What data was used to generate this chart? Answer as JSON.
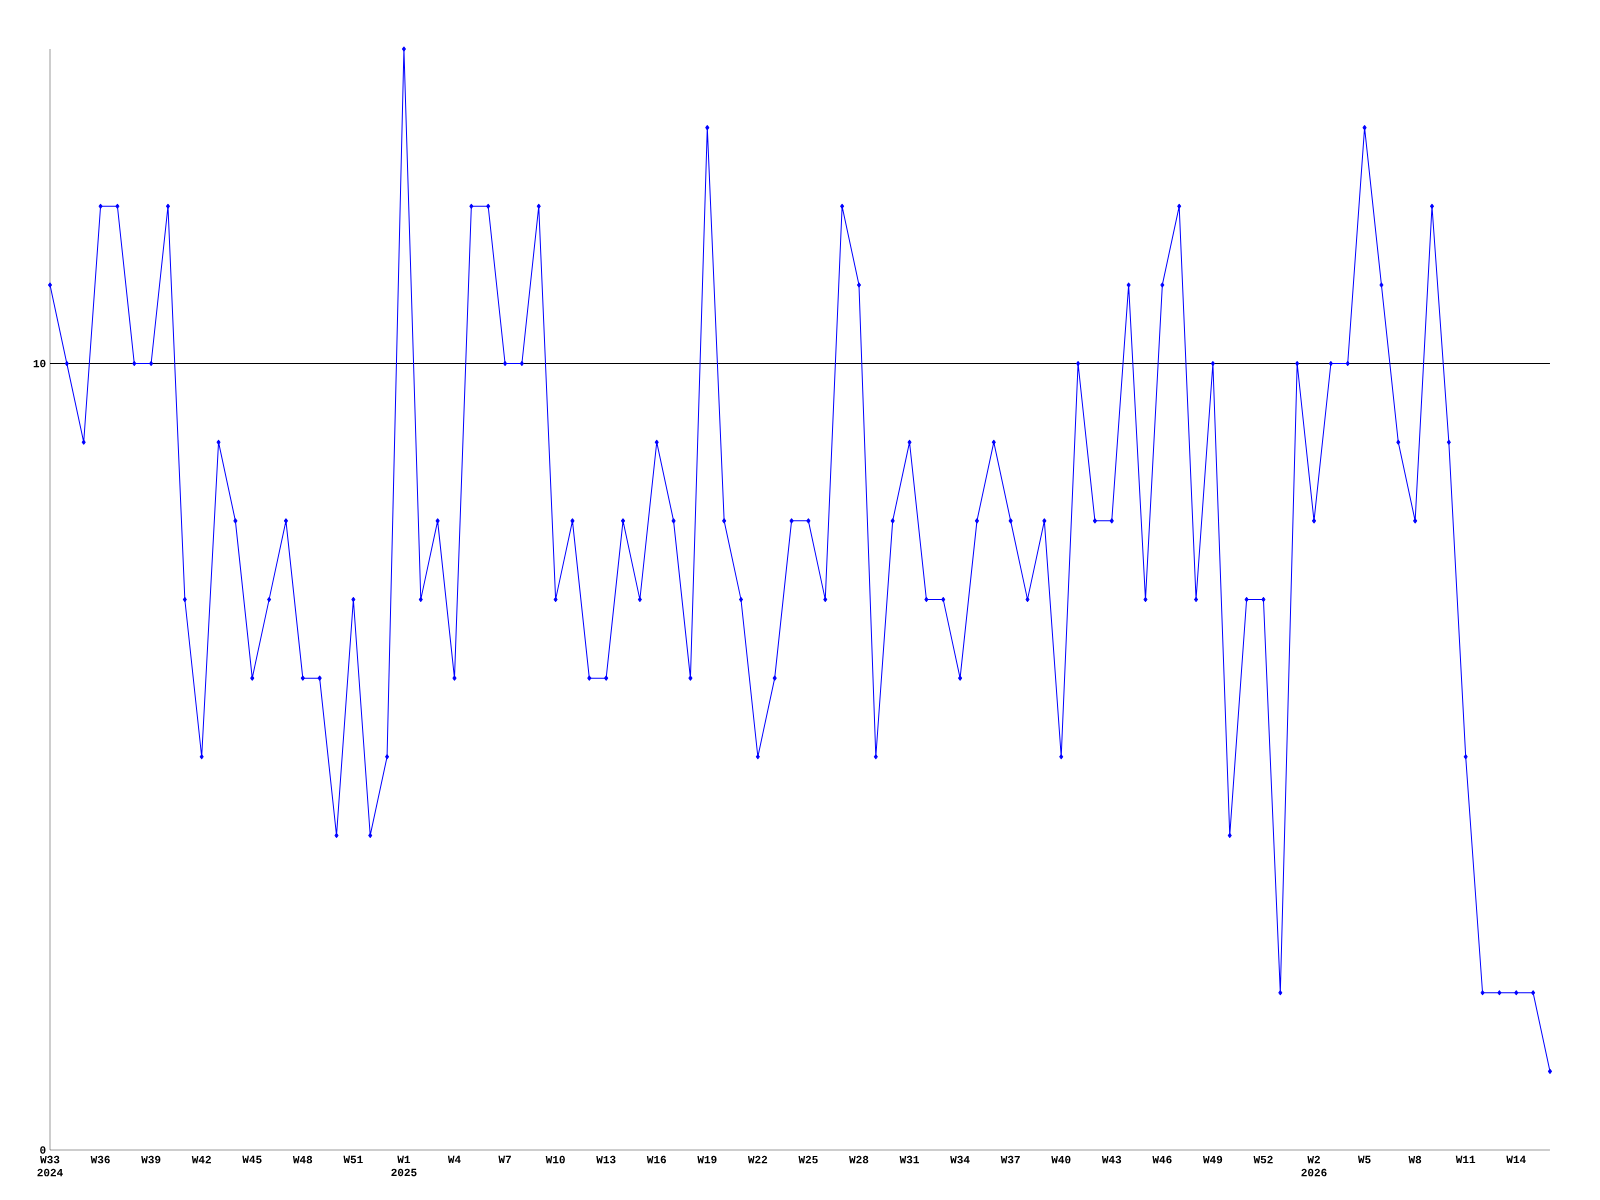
{
  "chart_data": {
    "type": "line",
    "categories": [
      "W33 2024",
      null,
      null,
      "W36",
      null,
      null,
      "W39",
      null,
      null,
      "W42",
      null,
      null,
      "W45",
      null,
      null,
      "W48",
      null,
      null,
      "W51",
      null,
      null,
      "W1 2025",
      null,
      null,
      "W4",
      null,
      null,
      "W7",
      null,
      null,
      "W10",
      null,
      null,
      "W13",
      null,
      null,
      "W16",
      null,
      null,
      "W19",
      null,
      null,
      "W22",
      null,
      null,
      "W25",
      null,
      null,
      "W28",
      null,
      null,
      "W31",
      null,
      null,
      "W34",
      null,
      null,
      "W37",
      null,
      null,
      "W40",
      null,
      null,
      "W43",
      null,
      null,
      "W46",
      null,
      null,
      "W49",
      null,
      null,
      "W52",
      null,
      null,
      "W2 2026",
      null,
      null,
      "W5",
      null,
      null,
      "W8",
      null,
      null,
      "W11",
      null,
      null,
      "W14",
      null,
      null
    ],
    "values": [
      11,
      10,
      9,
      12,
      12,
      10,
      10,
      12,
      7,
      5,
      9,
      8,
      6,
      7,
      8,
      6,
      6,
      4,
      7,
      4,
      5,
      14,
      7,
      8,
      6,
      12,
      12,
      10,
      10,
      12,
      7,
      8,
      6,
      6,
      8,
      7,
      9,
      8,
      6,
      13,
      8,
      7,
      5,
      6,
      8,
      8,
      7,
      12,
      11,
      5,
      8,
      9,
      7,
      7,
      6,
      8,
      9,
      8,
      7,
      8,
      5,
      10,
      8,
      8,
      11,
      7,
      11,
      12,
      7,
      10,
      4,
      7,
      7,
      2,
      10,
      8,
      10,
      10,
      13,
      11,
      9,
      8,
      12,
      9,
      5,
      2,
      2,
      2,
      2,
      1
    ],
    "color": "#0000ff",
    "marker": "diamond",
    "ylim": [
      0,
      14
    ],
    "yticks": [
      0,
      10
    ],
    "ref_lines": [
      {
        "axis": "y",
        "value": 10,
        "color": "#000000"
      }
    ]
  }
}
